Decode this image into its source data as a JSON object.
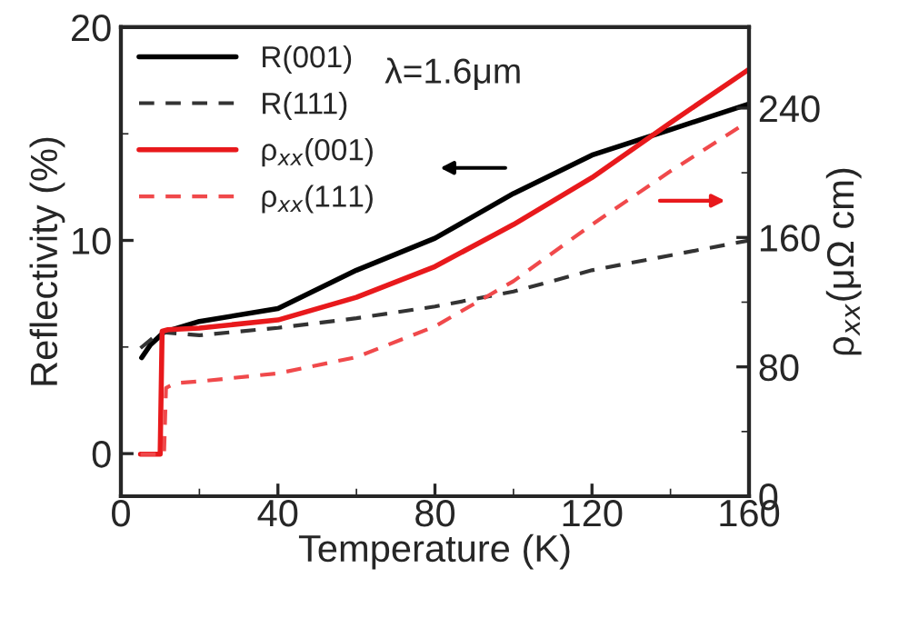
{
  "chart_data": {
    "type": "line",
    "xlabel": "Temperature (K)",
    "ylabel": "Reflectivity (%)",
    "y2label": "ρ$_{xx}$(μΩ cm)",
    "xlim": [
      0,
      160
    ],
    "xticks": [
      0,
      40,
      80,
      120,
      160
    ],
    "ylim": [
      -2,
      20
    ],
    "yticks": [
      0,
      10,
      20
    ],
    "y2lim": [
      0,
      290
    ],
    "y2ticks": [
      0,
      80,
      160,
      240
    ],
    "annotations": [
      "λ=1.6μm"
    ],
    "legend": "top left",
    "grid": false,
    "series": [
      {
        "name": "R(001)",
        "color": "#000000",
        "line_style": "solid",
        "x": [
          5.3,
          7.5,
          11,
          20,
          40,
          60,
          80,
          100,
          120,
          140,
          160
        ],
        "values": [
          4.5,
          5.1,
          5.7,
          6.2,
          6.8,
          8.6,
          10.1,
          12.2,
          14.0,
          15.2,
          16.4
        ]
      },
      {
        "name": "R(111)",
        "color": "#333333",
        "line_style": "dashed",
        "x": [
          5,
          10,
          20,
          40,
          60,
          80,
          100,
          120,
          140,
          160
        ],
        "values": [
          4.95,
          5.7,
          5.55,
          5.9,
          6.35,
          6.9,
          7.6,
          8.6,
          9.3,
          10.0
        ]
      },
      {
        "name": "ρ$_{xx}$(001)",
        "color": "#e8191c",
        "line_style": "solid",
        "axis": "y2",
        "x": [
          5,
          10,
          10.5,
          12,
          20,
          40,
          60,
          80,
          100,
          120,
          140,
          160
        ],
        "values": [
          26,
          26,
          102,
          103,
          104,
          109,
          123,
          142,
          168,
          197,
          231,
          264
        ]
      },
      {
        "name": "ρ$_{xx}$(111)",
        "color": "#f0494b",
        "line_style": "dashed",
        "axis": "y2",
        "x": [
          5,
          11,
          11.5,
          14,
          20,
          40,
          60,
          80,
          100,
          120,
          140,
          160
        ],
        "values": [
          26,
          26,
          67,
          70,
          71,
          76,
          86,
          105,
          133,
          168,
          201,
          232
        ]
      }
    ]
  }
}
